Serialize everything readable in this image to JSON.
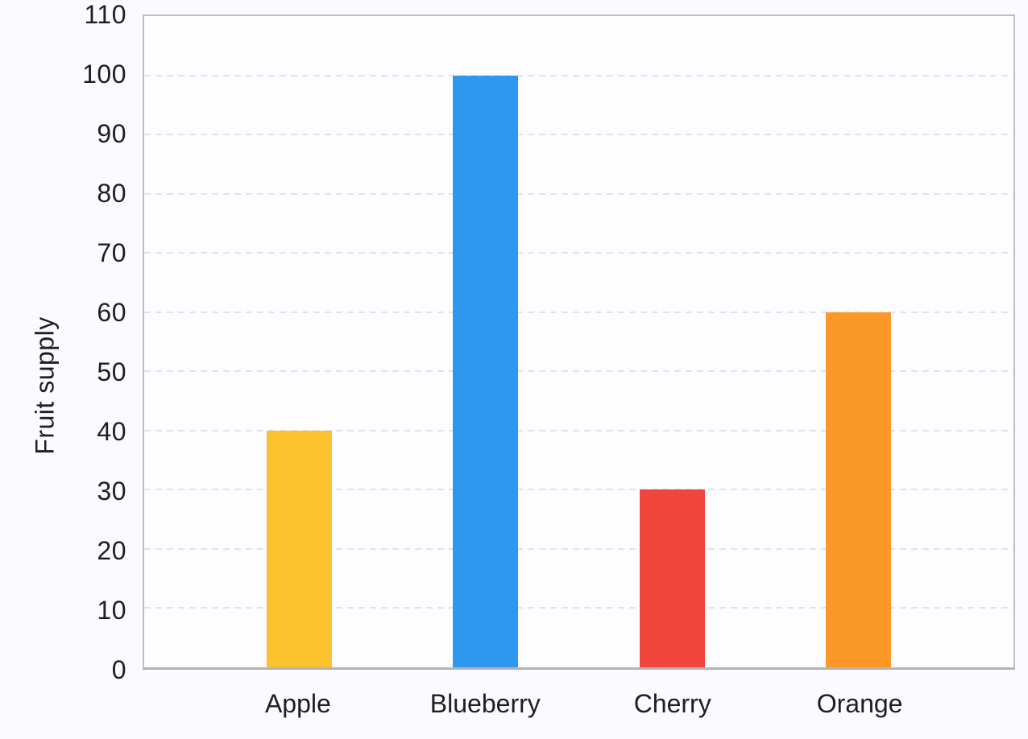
{
  "colors": {
    "text": "#1d1d26",
    "grid": "#e2e2e8",
    "plot_border": "#bdbdc4",
    "page_background": "#fbfbfe",
    "plot_background": "#fdfdff"
  },
  "chart_data": {
    "type": "bar",
    "title": "",
    "xlabel": "",
    "ylabel": "Fruit supply",
    "categories": [
      "Apple",
      "Blueberry",
      "Cherry",
      "Orange"
    ],
    "values": [
      40,
      100,
      30,
      60
    ],
    "bar_colors": [
      "#FCC22D",
      "#2E97EE",
      "#F1453D",
      "#FB9827"
    ],
    "ylim": [
      0,
      110
    ],
    "yticks": [
      0,
      10,
      20,
      30,
      40,
      50,
      60,
      70,
      80,
      90,
      100,
      110
    ],
    "grid": "horizontal-dashed",
    "legend_position": "none",
    "layout": {
      "bar_width_pct": 7.48,
      "outer_pad_pct": 7.08,
      "step_pct": 21.46
    }
  }
}
